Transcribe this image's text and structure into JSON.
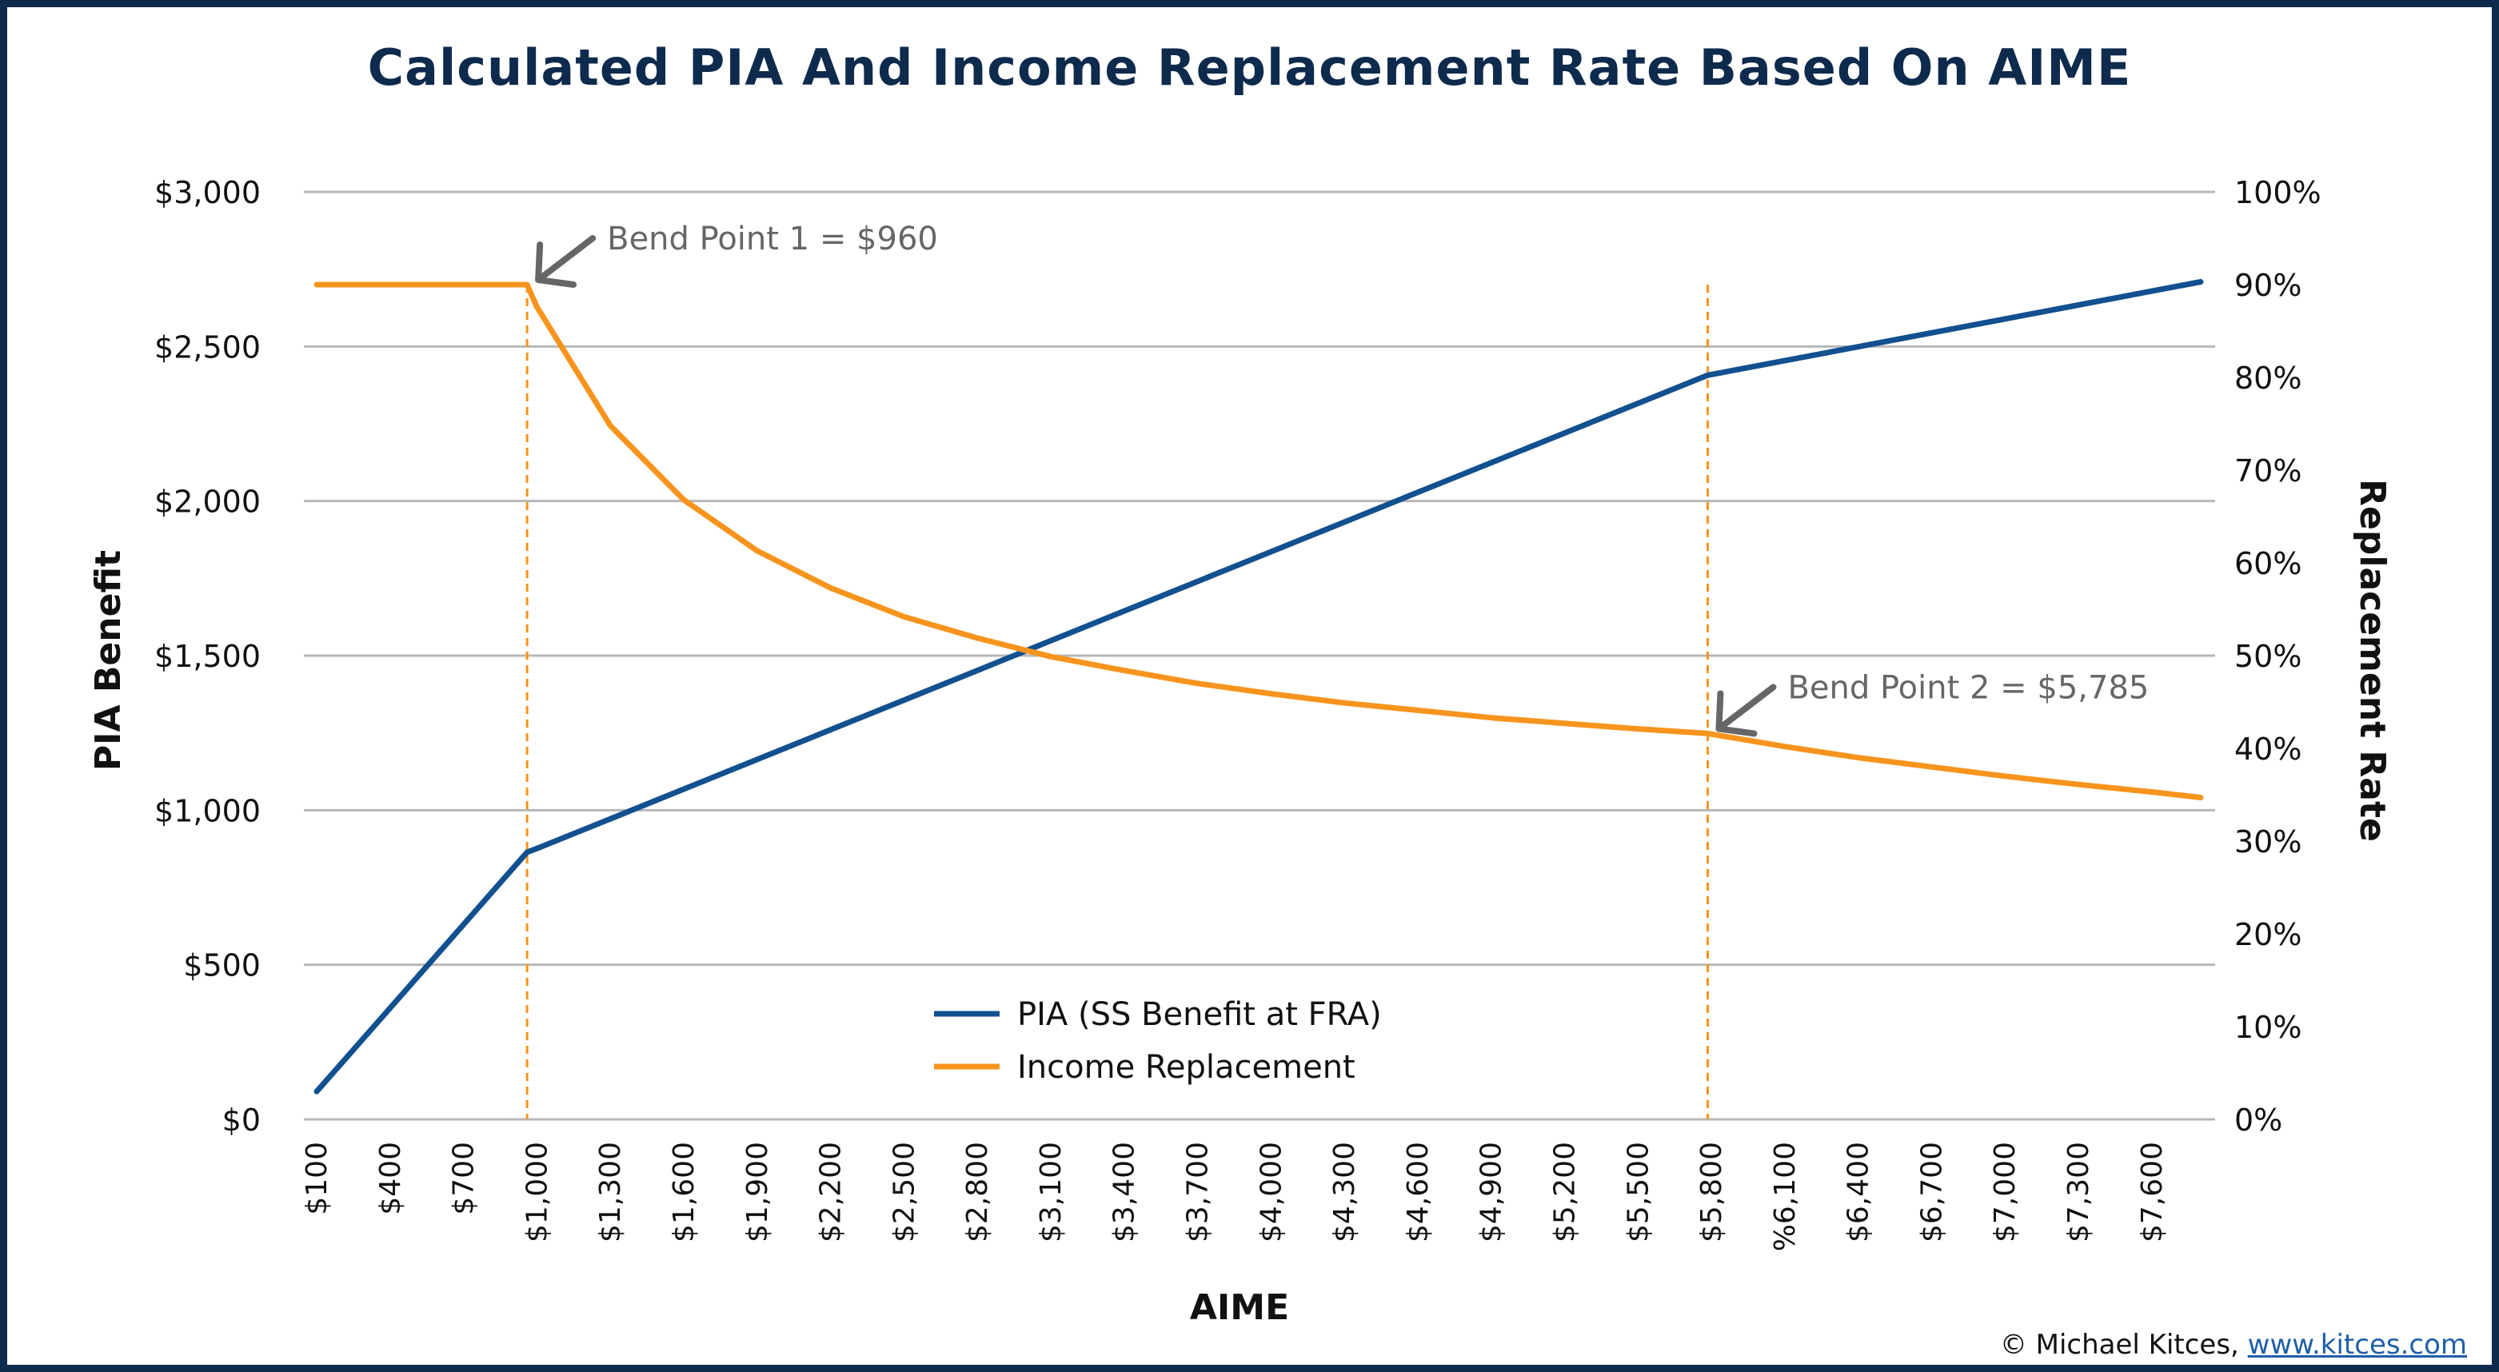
{
  "chart_data": {
    "type": "line",
    "title": "Calculated PIA And Income Replacement Rate Based On AIME",
    "xlabel": "AIME",
    "ylabel_left": "PIA Benefit",
    "ylabel_right": "Replacement Rate",
    "ylim_left": [
      0,
      3000
    ],
    "ylim_right": [
      0,
      100
    ],
    "yticks_left": [
      "$0",
      "$500",
      "$1,000",
      "$1,500",
      "$2,000",
      "$2,500",
      "$3,000"
    ],
    "yticks_right": [
      "0%",
      "10%",
      "20%",
      "30%",
      "40%",
      "50%",
      "60%",
      "70%",
      "80%",
      "90%",
      "100%"
    ],
    "xticks": [
      "$100",
      "$400",
      "$700",
      "$1,000",
      "$1,300",
      "$1,600",
      "$1,900",
      "$2,200",
      "$2,500",
      "$2,800",
      "$3,100",
      "$3,400",
      "$3,700",
      "$4,000",
      "$4,300",
      "$4,600",
      "$4,900",
      "$5,200",
      "$5,500",
      "$5,800",
      "%6,100",
      "$6,400",
      "$6,700",
      "$7,000",
      "$7,300",
      "$7,600"
    ],
    "grid": true,
    "legend_position": "bottom-center",
    "series": [
      {
        "name": "PIA (SS Benefit at FRA)",
        "axis": "left",
        "color": "#12508f",
        "x": [
          100,
          400,
          700,
          960,
          1000,
          1300,
          1600,
          1900,
          2200,
          2500,
          2800,
          3100,
          3400,
          3700,
          4000,
          4300,
          4600,
          4900,
          5200,
          5500,
          5785,
          6100,
          6400,
          6700,
          7000,
          7300,
          7600,
          7800
        ],
        "values": [
          90,
          360,
          630,
          864,
          876,
          972,
          1068,
          1164,
          1260,
          1356,
          1452,
          1548,
          1644,
          1740,
          1836,
          1932,
          2028,
          2124,
          2220,
          2316,
          2407,
          2454,
          2499,
          2544,
          2589,
          2634,
          2679,
          2709
        ]
      },
      {
        "name": "Income Replacement",
        "axis": "right",
        "color": "#f7941d",
        "x": [
          100,
          400,
          700,
          960,
          1000,
          1300,
          1600,
          1900,
          2200,
          2500,
          2800,
          3100,
          3400,
          3700,
          4000,
          4300,
          4600,
          4900,
          5200,
          5500,
          5785,
          6100,
          6400,
          6700,
          7000,
          7300,
          7600,
          7800
        ],
        "values": [
          90,
          90,
          90,
          90,
          87.6,
          74.8,
          66.8,
          61.3,
          57.3,
          54.2,
          51.9,
          49.9,
          48.4,
          47.0,
          45.9,
          44.9,
          44.1,
          43.3,
          42.7,
          42.1,
          41.6,
          40.2,
          39.0,
          38.0,
          37.0,
          36.1,
          35.3,
          34.7
        ]
      }
    ],
    "annotations": [
      {
        "text": "Bend Point 1 = $960",
        "x": 960
      },
      {
        "text": "Bend Point 2 = $5,785",
        "x": 5785
      }
    ]
  },
  "credit": {
    "prefix": "© Michael Kitces, ",
    "link": "www.kitces.com"
  },
  "colors": {
    "frame": "#0e2a4d",
    "title": "#0e2a4d",
    "pia": "#12508f",
    "replacement": "#f7941d",
    "grid": "#b7b7b7",
    "annotation": "#666666"
  }
}
